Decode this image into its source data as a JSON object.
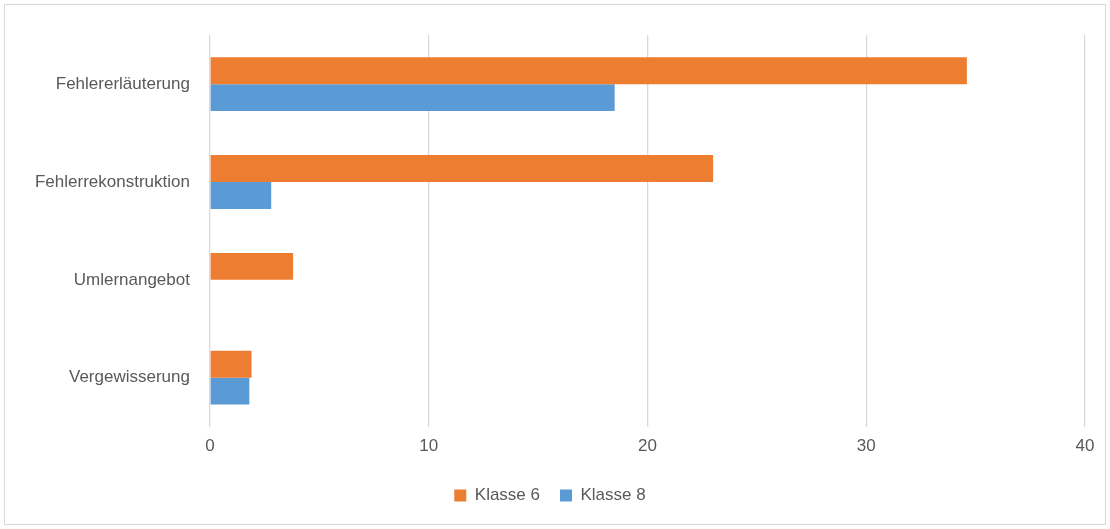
{
  "chart_data": {
    "type": "bar",
    "orientation": "horizontal",
    "categories": [
      "Fehlererläuterung",
      "Fehlerrekonstruktion",
      "Umlernangebot",
      "Vergewisserung"
    ],
    "series": [
      {
        "name": "Klasse 6",
        "color": "#ed7d31",
        "values": [
          34.6,
          23.0,
          3.8,
          1.9
        ]
      },
      {
        "name": "Klasse 8",
        "color": "#5b9bd5",
        "values": [
          18.5,
          2.8,
          0,
          1.8
        ]
      }
    ],
    "xlim": [
      0,
      40
    ],
    "xticks": [
      0,
      10,
      20,
      30,
      40
    ],
    "grid": "x",
    "legend": "bottom"
  }
}
